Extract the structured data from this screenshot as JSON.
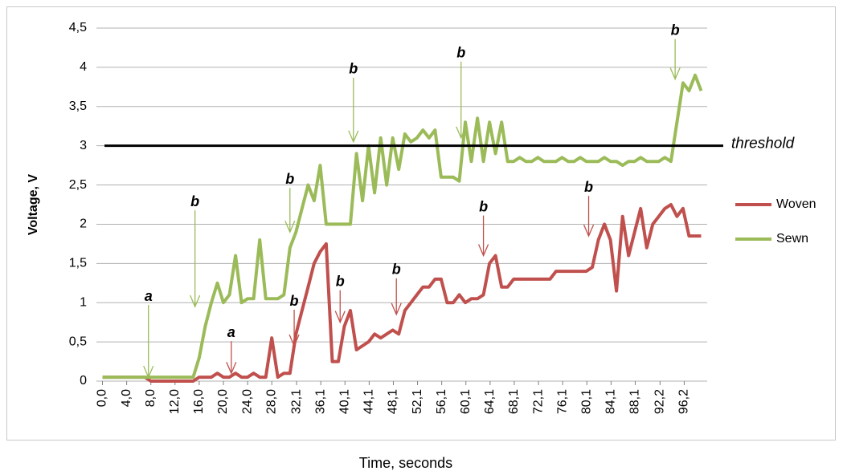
{
  "chart_data": {
    "type": "line",
    "x_label": "Time, seconds",
    "y_label": "Voltage, V",
    "x": [
      0,
      1,
      2,
      3,
      4,
      5,
      6,
      7,
      8,
      9,
      10,
      11,
      12,
      13,
      14,
      15,
      16,
      17,
      18,
      19,
      20,
      21,
      22,
      23,
      24,
      25,
      26,
      27,
      28,
      29,
      30,
      31,
      32,
      33,
      34,
      35,
      36,
      37,
      38,
      39,
      40,
      41,
      42,
      43,
      44,
      45,
      46,
      47,
      48,
      49,
      50,
      51,
      52,
      53,
      54,
      55,
      56,
      57,
      58,
      59,
      60,
      61,
      62,
      63,
      64,
      65,
      66,
      67,
      68,
      69,
      70,
      71,
      72,
      73,
      74,
      75,
      76,
      77,
      78,
      79,
      80,
      81,
      82,
      83,
      84,
      85,
      86,
      87,
      88,
      89,
      90,
      91,
      92,
      93,
      94,
      95,
      96,
      97,
      98,
      99
    ],
    "series": [
      {
        "name": "Woven",
        "color": "#c0504d",
        "values": [
          0.05,
          0.05,
          0.05,
          0.05,
          0.05,
          0.05,
          0.05,
          0.05,
          0,
          0,
          0,
          0,
          0,
          0,
          0,
          0,
          0.05,
          0.05,
          0.05,
          0.1,
          0.05,
          0.05,
          0.1,
          0.05,
          0.05,
          0.1,
          0.05,
          0.05,
          0.55,
          0.05,
          0.1,
          0.1,
          0.6,
          0.9,
          1.2,
          1.5,
          1.65,
          1.75,
          0.25,
          0.25,
          0.7,
          0.9,
          0.4,
          0.45,
          0.5,
          0.6,
          0.55,
          0.6,
          0.65,
          0.6,
          0.9,
          1.0,
          1.1,
          1.2,
          1.2,
          1.3,
          1.3,
          1.0,
          1.0,
          1.1,
          1.0,
          1.05,
          1.05,
          1.1,
          1.5,
          1.6,
          1.2,
          1.2,
          1.3,
          1.3,
          1.3,
          1.3,
          1.3,
          1.3,
          1.3,
          1.4,
          1.4,
          1.4,
          1.4,
          1.4,
          1.4,
          1.45,
          1.8,
          2.0,
          1.8,
          1.15,
          2.1,
          1.6,
          1.9,
          2.2,
          1.7,
          2.0,
          2.1,
          2.2,
          2.25,
          2.1,
          2.2,
          1.85,
          1.85,
          1.85
        ]
      },
      {
        "name": "Sewn",
        "color": "#9bbb59",
        "values": [
          0.05,
          0.05,
          0.05,
          0.05,
          0.05,
          0.05,
          0.05,
          0.05,
          0.05,
          0.05,
          0.05,
          0.05,
          0.05,
          0.05,
          0.05,
          0.05,
          0.3,
          0.7,
          1.0,
          1.25,
          1.0,
          1.1,
          1.6,
          1.0,
          1.05,
          1.05,
          1.8,
          1.05,
          1.05,
          1.05,
          1.1,
          1.7,
          1.9,
          2.2,
          2.5,
          2.3,
          2.75,
          2.0,
          2.0,
          2.0,
          2.0,
          2.0,
          2.9,
          2.3,
          3.0,
          2.4,
          3.1,
          2.5,
          3.1,
          2.7,
          3.15,
          3.05,
          3.1,
          3.2,
          3.1,
          3.2,
          2.6,
          2.6,
          2.6,
          2.55,
          3.3,
          2.8,
          3.35,
          2.8,
          3.3,
          2.9,
          3.3,
          2.8,
          2.8,
          2.85,
          2.8,
          2.8,
          2.85,
          2.8,
          2.8,
          2.8,
          2.85,
          2.8,
          2.8,
          2.85,
          2.8,
          2.8,
          2.8,
          2.85,
          2.8,
          2.8,
          2.75,
          2.8,
          2.8,
          2.85,
          2.8,
          2.8,
          2.8,
          2.85,
          2.8,
          3.3,
          3.8,
          3.7,
          3.9,
          3.7
        ]
      }
    ],
    "xlim": [
      -1,
      100
    ],
    "xticks": [
      {
        "value": 0,
        "label": "0,0"
      },
      {
        "value": 4,
        "label": "4,0"
      },
      {
        "value": 8,
        "label": "8,0"
      },
      {
        "value": 12,
        "label": "12,0"
      },
      {
        "value": 16,
        "label": "16,0"
      },
      {
        "value": 20,
        "label": "20,0"
      },
      {
        "value": 24,
        "label": "24,0"
      },
      {
        "value": 28,
        "label": "28,0"
      },
      {
        "value": 32.1,
        "label": "32,1"
      },
      {
        "value": 36.1,
        "label": "36,1"
      },
      {
        "value": 40.1,
        "label": "40,1"
      },
      {
        "value": 44.1,
        "label": "44,1"
      },
      {
        "value": 48.1,
        "label": "48,1"
      },
      {
        "value": 52.1,
        "label": "52,1"
      },
      {
        "value": 56.1,
        "label": "56,1"
      },
      {
        "value": 60.1,
        "label": "60,1"
      },
      {
        "value": 64.1,
        "label": "64,1"
      },
      {
        "value": 68.1,
        "label": "68,1"
      },
      {
        "value": 72.1,
        "label": "72,1"
      },
      {
        "value": 76.1,
        "label": "76,1"
      },
      {
        "value": 80.1,
        "label": "80,1"
      },
      {
        "value": 84.1,
        "label": "84,1"
      },
      {
        "value": 88.1,
        "label": "88,1"
      },
      {
        "value": 92.2,
        "label": "92,2"
      },
      {
        "value": 96.2,
        "label": "96,2"
      }
    ],
    "ylim": [
      0,
      4.5
    ],
    "yticks": [
      0,
      {
        "value": 0.5,
        "label": "0,5"
      },
      1,
      {
        "value": 1.5,
        "label": "1,5"
      },
      2,
      {
        "value": 2.5,
        "label": "2,5"
      },
      3,
      {
        "value": 3.5,
        "label": "3,5"
      },
      4,
      {
        "value": 4.5,
        "label": "4,5"
      }
    ],
    "grid": true,
    "threshold": {
      "value": 3,
      "label": "threshold"
    },
    "annotations": [
      {
        "text": "a",
        "color": "#9bbb59",
        "x": 7.6,
        "y": 0.05
      },
      {
        "text": "b",
        "color": "#9bbb59",
        "x": 15.3,
        "y": 0.95
      },
      {
        "text": "b",
        "color": "#9bbb59",
        "x": 31,
        "y": 1.9
      },
      {
        "text": "b",
        "color": "#9bbb59",
        "x": 41.5,
        "y": 3.05
      },
      {
        "text": "b",
        "color": "#9bbb59",
        "x": 59.3,
        "y": 3.1
      },
      {
        "text": "b",
        "color": "#9bbb59",
        "x": 94.7,
        "y": 3.85
      },
      {
        "text": "a",
        "color": "#c0504d",
        "x": 21.3,
        "y": 0.1
      },
      {
        "text": "b",
        "color": "#c0504d",
        "x": 31.7,
        "y": 0.45
      },
      {
        "text": "b",
        "color": "#c0504d",
        "x": 39.3,
        "y": 0.75
      },
      {
        "text": "b",
        "color": "#c0504d",
        "x": 48.6,
        "y": 0.85
      },
      {
        "text": "b",
        "color": "#c0504d",
        "x": 63,
        "y": 1.6
      },
      {
        "text": "b",
        "color": "#c0504d",
        "x": 80.4,
        "y": 1.85
      }
    ]
  }
}
